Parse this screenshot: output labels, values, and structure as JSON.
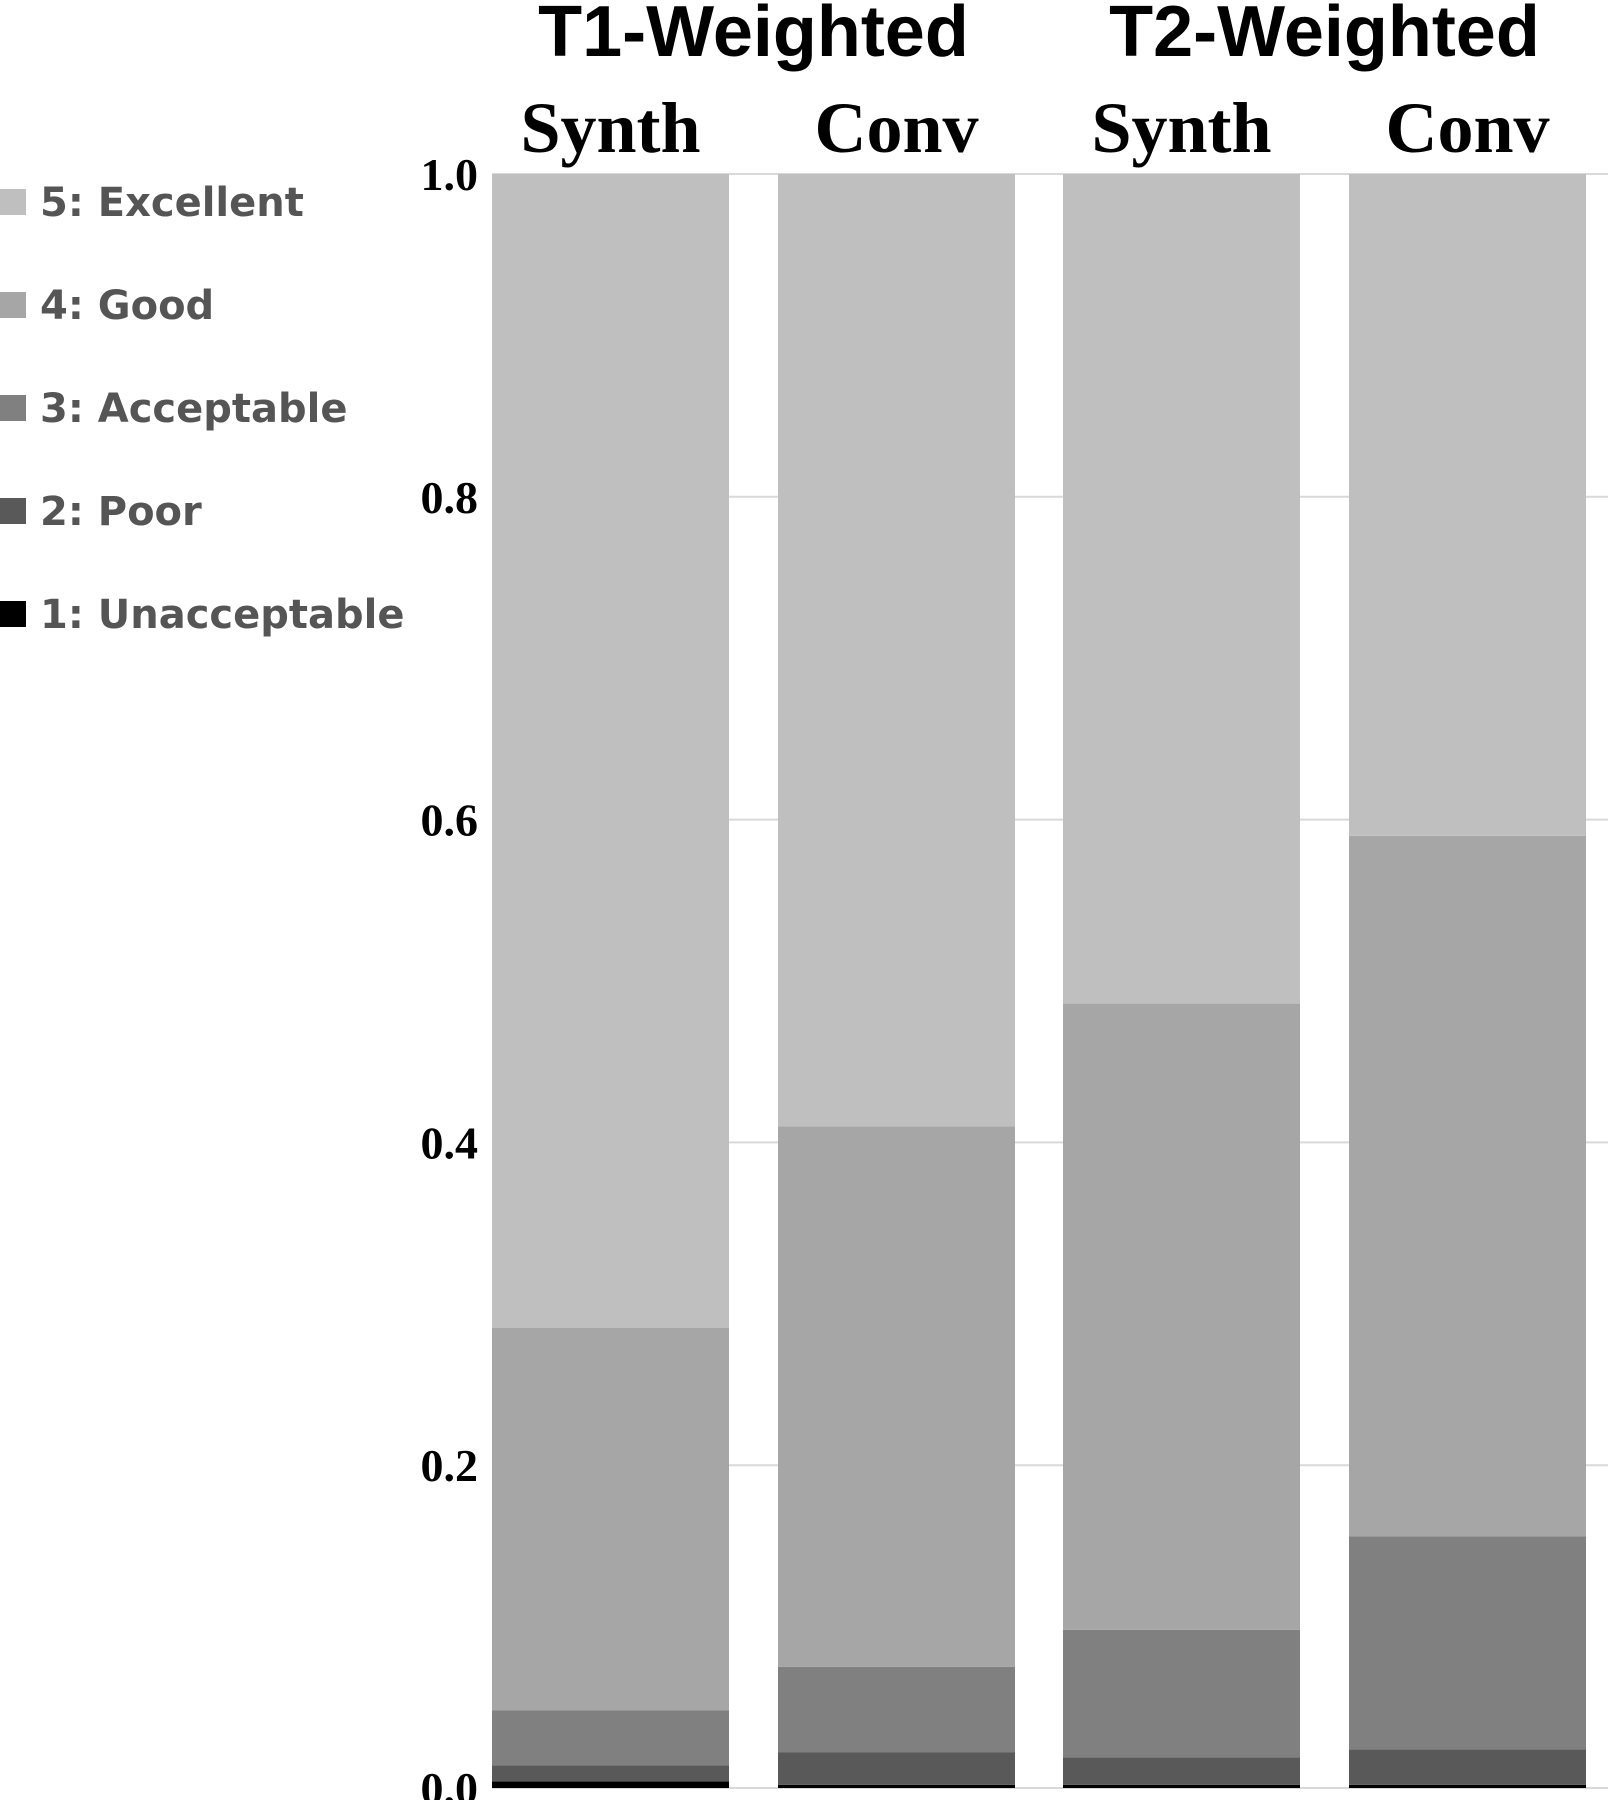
{
  "chart_data": {
    "type": "bar",
    "stacked": true,
    "groups": [
      {
        "label": "T1-Weighted",
        "columns": [
          0,
          1
        ]
      },
      {
        "label": "T2-Weighted",
        "columns": [
          2,
          3
        ]
      }
    ],
    "categories": [
      "Synth",
      "Conv",
      "Synth",
      "Conv"
    ],
    "series": [
      {
        "name": "1: Unacceptable",
        "color": "#000000",
        "values": [
          0.004,
          0.002,
          0.002,
          0.002
        ]
      },
      {
        "name": "2: Poor",
        "color": "#595959",
        "values": [
          0.01,
          0.02,
          0.017,
          0.022
        ]
      },
      {
        "name": "3: Acceptable",
        "color": "#808080",
        "values": [
          0.034,
          0.053,
          0.079,
          0.132
        ]
      },
      {
        "name": "4: Good",
        "color": "#a6a6a6",
        "values": [
          0.237,
          0.335,
          0.388,
          0.434
        ]
      },
      {
        "name": "5: Excellent",
        "color": "#bfbfbf",
        "values": [
          0.715,
          0.59,
          0.514,
          0.41
        ]
      }
    ],
    "legend_order": [
      "5: Excellent",
      "4: Good",
      "3: Acceptable",
      "2: Poor",
      "1: Unacceptable"
    ],
    "legend_position": "left",
    "yticks": [
      "0.0",
      "0.2",
      "0.4",
      "0.6",
      "0.8",
      "1.0"
    ],
    "ylim": [
      0,
      1
    ],
    "grid": true,
    "title": "",
    "xlabel": "",
    "ylabel": ""
  }
}
